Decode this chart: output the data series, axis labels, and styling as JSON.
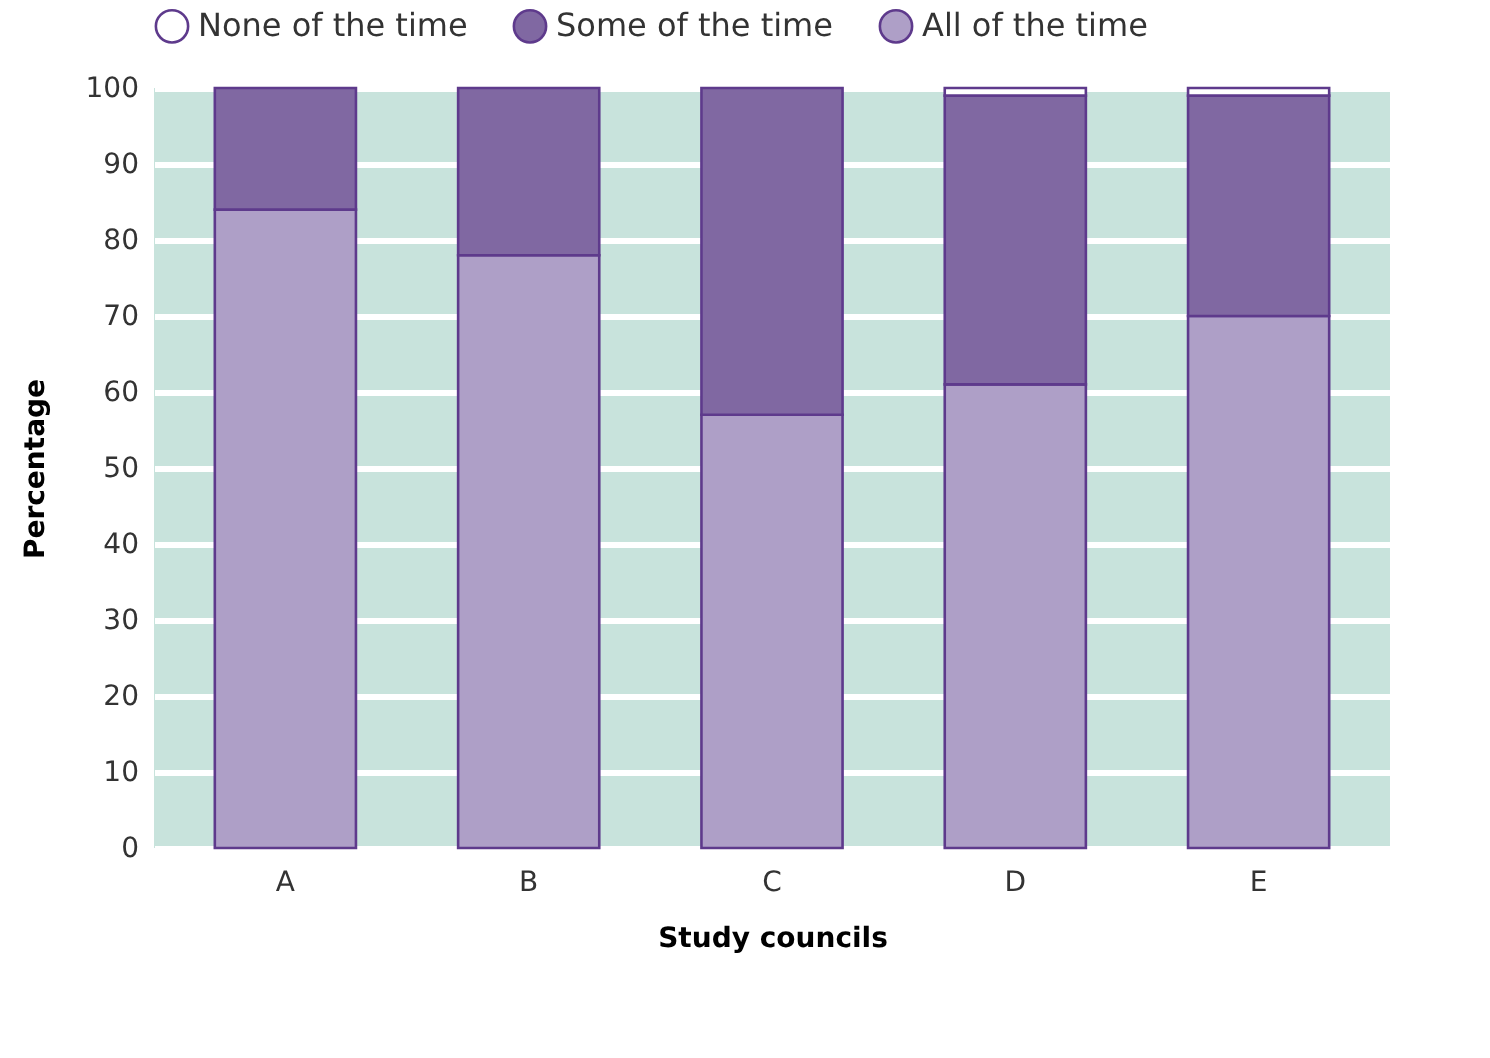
{
  "chart_data": {
    "type": "bar",
    "stacked": true,
    "xlabel": "Study councils",
    "ylabel": "Percentage",
    "categories": [
      "A",
      "B",
      "C",
      "D",
      "E"
    ],
    "series": [
      {
        "name": "All of the time",
        "color": "#ae9fc7",
        "values": [
          84,
          78,
          57,
          61,
          70
        ]
      },
      {
        "name": "Some of the time",
        "color": "#8068a2",
        "values": [
          16,
          22,
          43,
          38,
          29
        ]
      },
      {
        "name": "None of the time",
        "color": "#ffffff",
        "values": [
          0,
          0,
          0,
          1,
          1
        ]
      }
    ],
    "ylim": [
      0,
      100
    ],
    "yticks": [
      0,
      10,
      20,
      30,
      40,
      50,
      60,
      70,
      80,
      90,
      100
    ],
    "grid": "y",
    "legend": "top"
  }
}
